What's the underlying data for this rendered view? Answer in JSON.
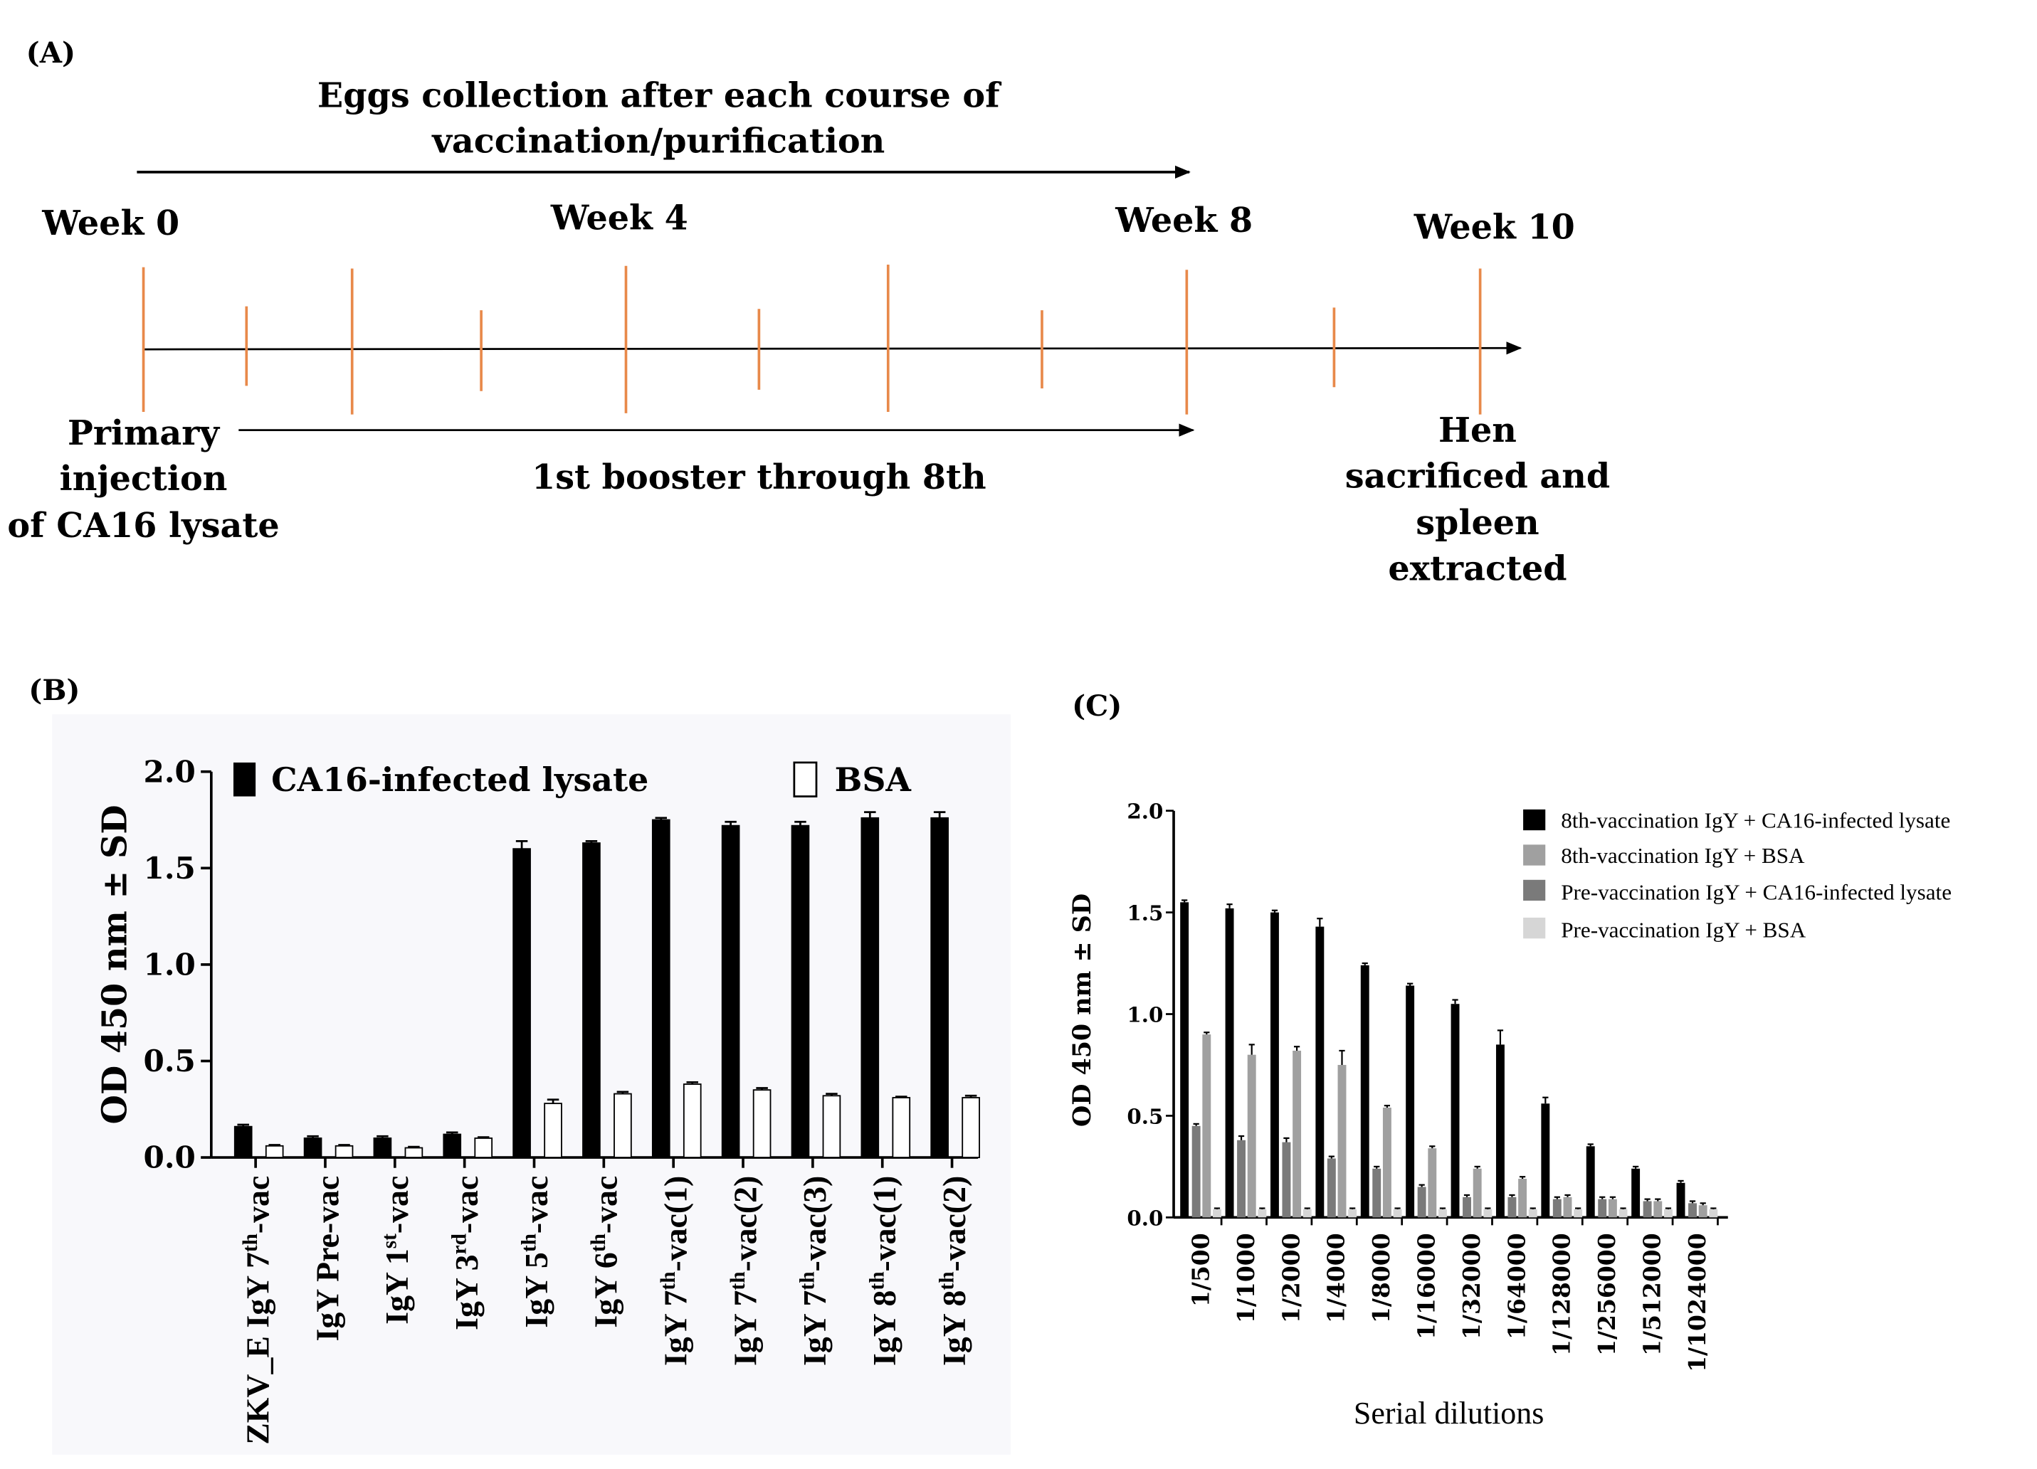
{
  "panel_a": {
    "label": "(A)",
    "top_arrow_text": [
      "Eggs collection  after each course of",
      "vaccination/purification"
    ],
    "weeks": [
      "Week 0",
      "Week 4",
      "Week 8",
      "Week 10"
    ],
    "left_text": [
      "Primary",
      "injection",
      "of CA16 lysate"
    ],
    "booster_text": "1st booster through 8th",
    "right_text": [
      "Hen",
      "sacrificed  and",
      "spleen",
      "extracted"
    ],
    "timeline_color": "#e8894a"
  },
  "chart_data": [
    {
      "id": "B",
      "panel_label": "(B)",
      "type": "bar",
      "ylabel": "OD 450 nm ± SD",
      "ylim": [
        0,
        2.0
      ],
      "yticks": [
        "0.0",
        "0.5",
        "1.0",
        "1.5",
        "2.0"
      ],
      "categories": [
        "ZKV_E IgY 7th-vac",
        "IgY Pre-vac",
        "IgY 1st-vac",
        "IgY 3rd-vac",
        "IgY 5th-vac",
        "IgY 6th-vac",
        "IgY 7th-vac(1)",
        "IgY 7th-vac(2)",
        "IgY 7th-vac(3)",
        "IgY 8th-vac(1)",
        "IgY 8th-vac(2)"
      ],
      "series": [
        {
          "name": "CA16-infected lysate",
          "color": "#000000",
          "values": [
            0.16,
            0.1,
            0.1,
            0.12,
            1.6,
            1.63,
            1.75,
            1.72,
            1.72,
            1.76,
            1.76
          ],
          "errors": [
            0.01,
            0.01,
            0.01,
            0.01,
            0.04,
            0.01,
            0.01,
            0.02,
            0.02,
            0.03,
            0.03
          ]
        },
        {
          "name": "BSA",
          "color": "#ffffff",
          "values": [
            0.06,
            0.06,
            0.05,
            0.1,
            0.28,
            0.33,
            0.38,
            0.35,
            0.32,
            0.31,
            0.31
          ],
          "errors": [
            0.005,
            0.005,
            0.005,
            0.005,
            0.02,
            0.01,
            0.01,
            0.01,
            0.01,
            0.005,
            0.01
          ]
        }
      ]
    },
    {
      "id": "C",
      "panel_label": "(C)",
      "type": "bar",
      "xlabel": "Serial dilutions",
      "ylabel": "OD 450 nm ± SD",
      "ylim": [
        0,
        2.0
      ],
      "yticks": [
        "0.0",
        "0.5",
        "1.0",
        "1.5",
        "2.0"
      ],
      "categories": [
        "1/500",
        "1/1000",
        "1/2000",
        "1/4000",
        "1/8000",
        "1/16000",
        "1/32000",
        "1/64000",
        "1/128000",
        "1/256000",
        "1/512000",
        "1/1024000"
      ],
      "series": [
        {
          "name": "8th-vaccination IgY + CA16-infected lysate",
          "color": "#000000",
          "values": [
            1.55,
            1.52,
            1.5,
            1.43,
            1.24,
            1.14,
            1.05,
            0.85,
            0.56,
            0.35,
            0.24,
            0.17
          ],
          "errors": [
            0.01,
            0.02,
            0.01,
            0.04,
            0.01,
            0.01,
            0.02,
            0.07,
            0.03,
            0.01,
            0.01,
            0.01
          ]
        },
        {
          "name": "8th-vaccination IgY + BSA",
          "color": "#a0a0a0",
          "values": [
            0.9,
            0.8,
            0.82,
            0.75,
            0.54,
            0.34,
            0.24,
            0.19,
            0.1,
            0.09,
            0.08,
            0.06
          ],
          "errors": [
            0.01,
            0.05,
            0.02,
            0.07,
            0.01,
            0.01,
            0.01,
            0.01,
            0.01,
            0.01,
            0.01,
            0.01
          ]
        },
        {
          "name": "Pre-vaccination IgY + CA16-infected lysate",
          "color": "#7a7a7a",
          "values": [
            0.45,
            0.38,
            0.37,
            0.29,
            0.24,
            0.15,
            0.1,
            0.1,
            0.09,
            0.09,
            0.08,
            0.07
          ],
          "errors": [
            0.01,
            0.02,
            0.02,
            0.01,
            0.01,
            0.01,
            0.01,
            0.01,
            0.01,
            0.01,
            0.01,
            0.01
          ]
        },
        {
          "name": "Pre-vaccination IgY + BSA",
          "color": "#d6d6d6",
          "values": [
            0.04,
            0.04,
            0.04,
            0.04,
            0.04,
            0.04,
            0.04,
            0.04,
            0.04,
            0.04,
            0.04,
            0.04
          ],
          "errors": [
            0.005,
            0.005,
            0.005,
            0.005,
            0.005,
            0.005,
            0.005,
            0.005,
            0.005,
            0.005,
            0.005,
            0.005
          ]
        }
      ]
    }
  ]
}
